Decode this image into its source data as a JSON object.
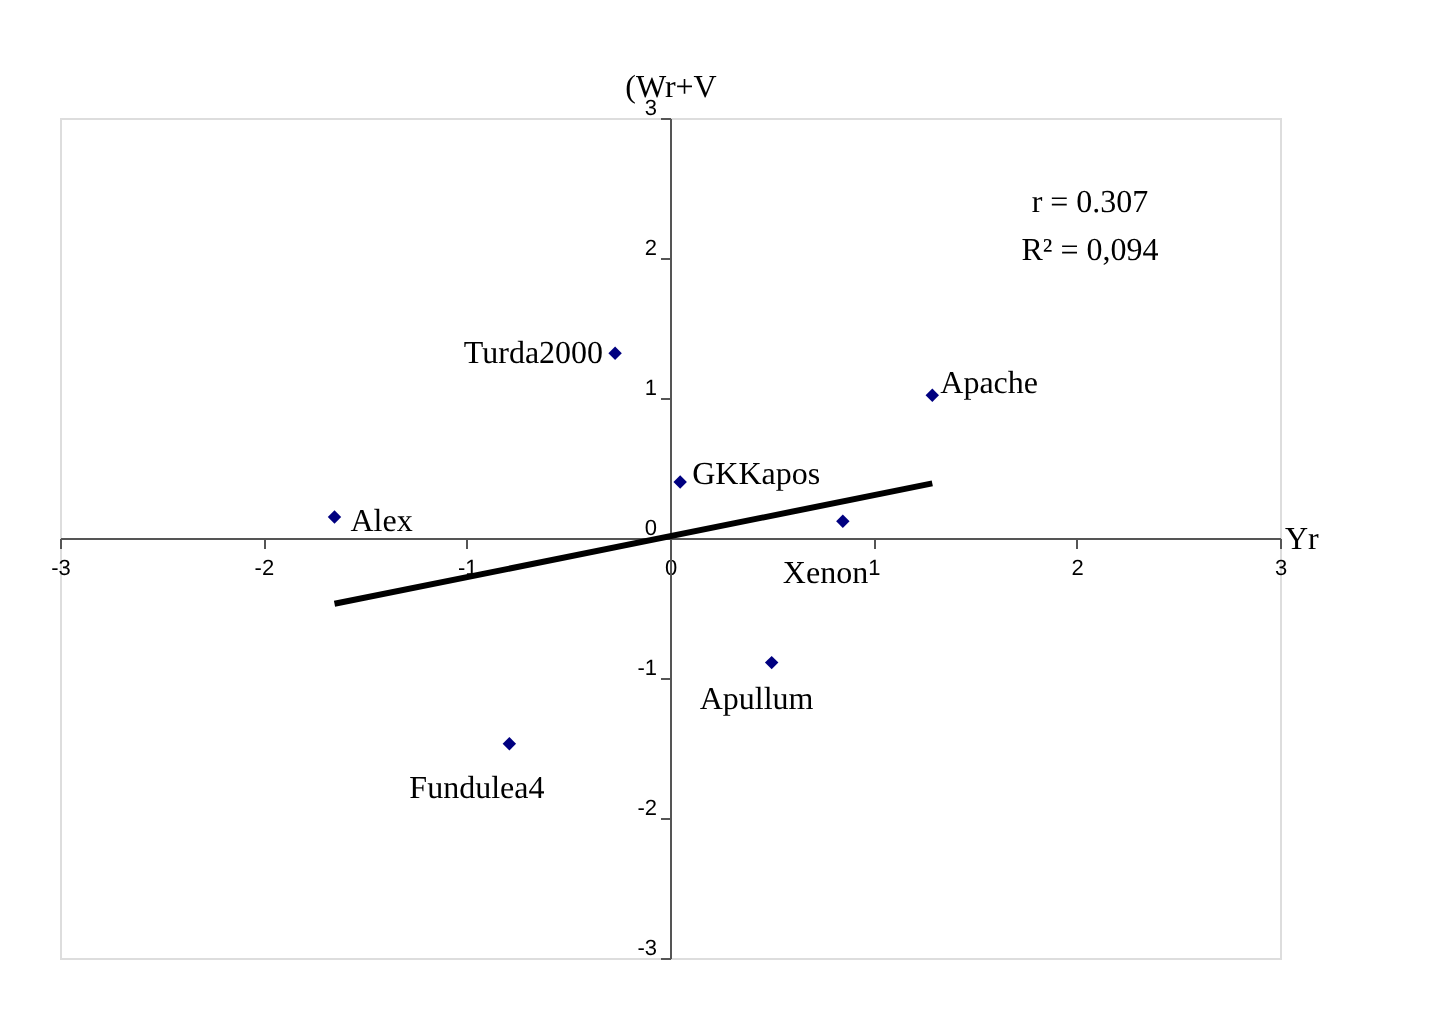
{
  "chart_data": {
    "type": "scatter",
    "xlabel": "Yr",
    "ylabel": "(Wr+V",
    "xlim": [
      -3,
      3
    ],
    "ylim": [
      -3,
      3
    ],
    "xticks": [
      -3,
      -2,
      -1,
      0,
      1,
      2,
      3
    ],
    "yticks": [
      -3,
      -2,
      -1,
      0,
      1,
      2,
      3
    ],
    "grid": false,
    "series": [
      {
        "marker": "diamond",
        "color": "#000080",
        "x": [
          -0.27,
          1.29,
          0.05,
          -1.65,
          0.85,
          0.5,
          -0.79
        ],
        "values": [
          1.32,
          1.02,
          0.4,
          0.15,
          0.12,
          -0.89,
          -1.47
        ]
      },
      {
        "type": "line",
        "color": "#000000",
        "line_style": "solid",
        "x": [
          -1.65,
          1.29
        ],
        "values": [
          -0.47,
          0.39
        ]
      }
    ],
    "annotations": [
      {
        "text": "Turda2000",
        "x": -0.27,
        "y": 1.32
      },
      {
        "text": "Apache",
        "x": 1.29,
        "y": 1.02
      },
      {
        "text": "GKKapos",
        "x": 0.05,
        "y": 0.4
      },
      {
        "text": "Alex",
        "x": -1.65,
        "y": 0.15
      },
      {
        "text": "Xenon",
        "x": 0.85,
        "y": 0.12
      },
      {
        "text": "Apullum",
        "x": 0.5,
        "y": -0.89
      },
      {
        "text": "Fundulea4",
        "x": -0.79,
        "y": -1.47
      },
      "r = 0.307",
      "R² = 0,094"
    ]
  }
}
